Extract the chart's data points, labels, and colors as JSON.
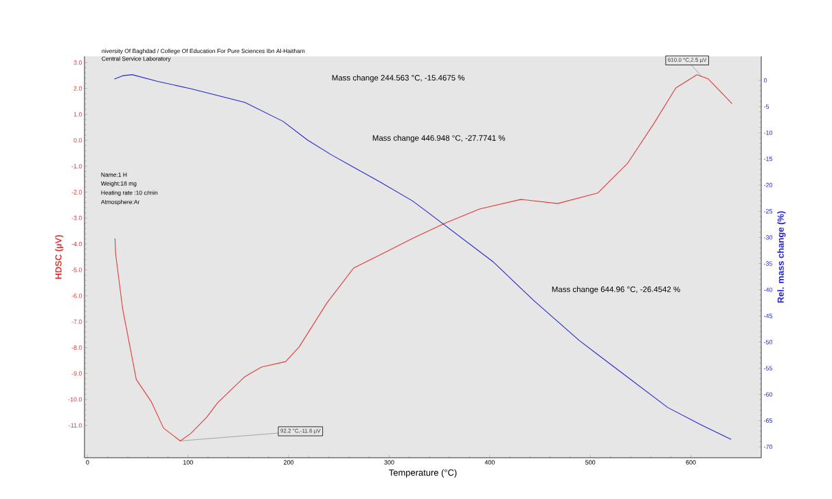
{
  "chart_data": {
    "type": "line",
    "title": "niversity Of Baghdad / College Of Education For Pure Sciences Ibn Al-Haitham",
    "subtitle": "Central Service Laboratory",
    "xlabel": "Temperature (°C)",
    "ylabel": "HDSC (µV)",
    "y2label": "Rel. mass change (%)",
    "xlim": [
      -3,
      670
    ],
    "xticks": [
      0,
      100,
      200,
      300,
      400,
      500,
      600
    ],
    "ylim": [
      -12.25,
      3.24
    ],
    "yticks": [
      {
        "value": 3,
        "label": "3.0"
      },
      {
        "value": 2,
        "label": "2.0"
      },
      {
        "value": 1,
        "label": "1.0"
      },
      {
        "value": 0,
        "label": "0.0"
      },
      {
        "value": -1,
        "label": "-1.0"
      },
      {
        "value": -2,
        "label": "-2.0"
      },
      {
        "value": -3,
        "label": "-3.0"
      },
      {
        "value": -4,
        "label": "-4.0"
      },
      {
        "value": -5,
        "label": "-5.0"
      },
      {
        "value": -6,
        "label": "-6.0"
      },
      {
        "value": -7,
        "label": "-7.0"
      },
      {
        "value": -8,
        "label": "-8.0"
      },
      {
        "value": -9,
        "label": "-9.0"
      },
      {
        "value": -10,
        "label": "-10.0"
      },
      {
        "value": -11,
        "label": "-11.0"
      }
    ],
    "y2lim": [
      -72.1,
      4.6
    ],
    "y2ticks": [
      0,
      -5,
      -10,
      -15,
      -20,
      -25,
      -30,
      -35,
      -40,
      -45,
      -50,
      -55,
      -60,
      -65,
      -70
    ],
    "series": [
      {
        "color": "#e03a3a",
        "x": [
          27.3,
          28,
          34.9,
          48.5,
          63.6,
          75.5,
          92.2,
          102.5,
          118.2,
          129.6,
          156.5,
          173,
          197,
          210.5,
          238,
          264.6,
          292,
          323,
          355.4,
          390,
          431,
          467.5,
          507.5,
          537,
          563.6,
          585,
          606,
          617,
          641
        ],
        "values": [
          -3.79,
          -4.4,
          -6.5,
          -9.23,
          -10.1,
          -11.1,
          -11.6,
          -11.32,
          -10.7,
          -10.12,
          -9.12,
          -8.75,
          -8.54,
          -7.97,
          -6.28,
          -4.93,
          -4.4,
          -3.79,
          -3.2,
          -2.65,
          -2.28,
          -2.44,
          -2.03,
          -0.89,
          0.67,
          2.02,
          2.53,
          2.38,
          1.41
        ]
      },
      {
        "color": "#2424d0",
        "axis": "y2",
        "x": [
          26.7,
          35,
          44.4,
          70,
          102.5,
          156.5,
          194.5,
          218.8,
          243.2,
          290,
          323,
          337,
          403,
          443.5,
          489,
          524,
          577,
          610,
          640
        ],
        "values": [
          0.26,
          0.9,
          1.1,
          -0.2,
          -1.58,
          -4.2,
          -7.83,
          -11.4,
          -14.3,
          -19.3,
          -23,
          -25,
          -34.6,
          -42,
          -49.7,
          -54.8,
          -62.5,
          -65.8,
          -68.6
        ]
      }
    ],
    "annotations": [
      "Name:1 H",
      "Weight:18 mg",
      "Heating rate :10 c/min",
      "Atmosphere:Ar",
      "Mass change 244.563 °C,  -15.4675 %",
      "Mass change 446.948 °C,  -27.7741 %",
      "Mass change 644.96 °C,  -26.4542 %",
      {
        "text": "610.0 °C,2.5 µV",
        "x": 610,
        "y": 2.5
      },
      {
        "text": "92.2 °C,-11.6 µV",
        "x": 92.2,
        "y": -11.6
      }
    ]
  }
}
